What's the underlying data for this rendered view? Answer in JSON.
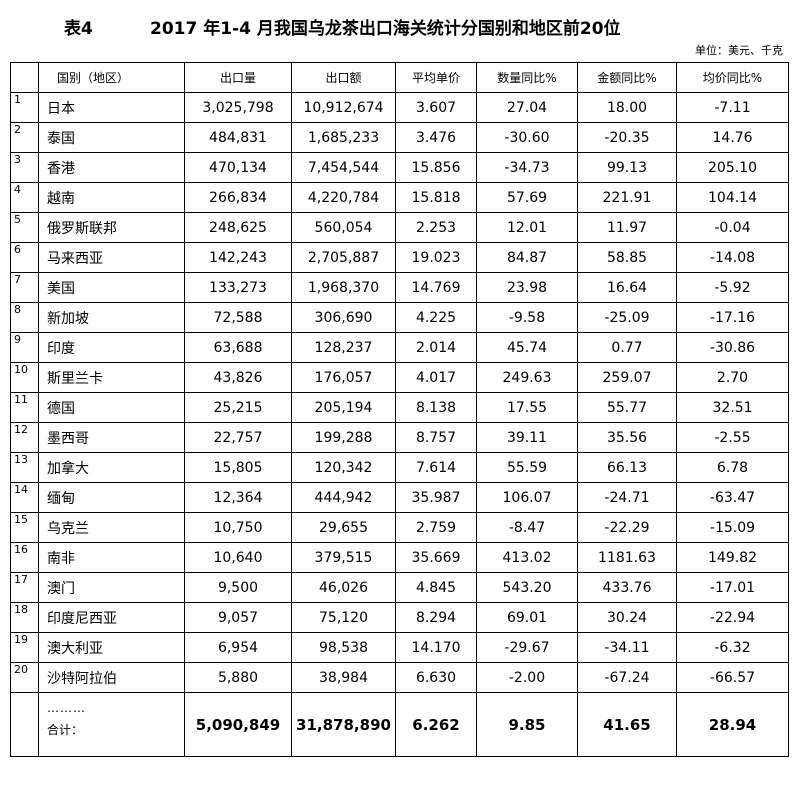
{
  "header": {
    "table_no": "表4",
    "title": "2017 年1-4 月我国乌龙茶出口海关统计分国别和地区前20位",
    "unit": "单位：美元、千克"
  },
  "columns": [
    "国别（地区）",
    "出口量",
    "出口额",
    "平均单价",
    "数量同比%",
    "金额同比%",
    "均价同比%"
  ],
  "rows": [
    {
      "no": "1",
      "name": "日本",
      "qty": "3,025,798",
      "amt": "10,912,674",
      "unit_price": "3.607",
      "qty_pct": "27.04",
      "amt_pct": "18.00",
      "price_pct": "-7.11"
    },
    {
      "no": "2",
      "name": "泰国",
      "qty": "484,831",
      "amt": "1,685,233",
      "unit_price": "3.476",
      "qty_pct": "-30.60",
      "amt_pct": "-20.35",
      "price_pct": "14.76"
    },
    {
      "no": "3",
      "name": "香港",
      "qty": "470,134",
      "amt": "7,454,544",
      "unit_price": "15.856",
      "qty_pct": "-34.73",
      "amt_pct": "99.13",
      "price_pct": "205.10"
    },
    {
      "no": "4",
      "name": "越南",
      "qty": "266,834",
      "amt": "4,220,784",
      "unit_price": "15.818",
      "qty_pct": "57.69",
      "amt_pct": "221.91",
      "price_pct": "104.14"
    },
    {
      "no": "5",
      "name": "俄罗斯联邦",
      "qty": "248,625",
      "amt": "560,054",
      "unit_price": "2.253",
      "qty_pct": "12.01",
      "amt_pct": "11.97",
      "price_pct": "-0.04"
    },
    {
      "no": "6",
      "name": "马来西亚",
      "qty": "142,243",
      "amt": "2,705,887",
      "unit_price": "19.023",
      "qty_pct": "84.87",
      "amt_pct": "58.85",
      "price_pct": "-14.08"
    },
    {
      "no": "7",
      "name": "美国",
      "qty": "133,273",
      "amt": "1,968,370",
      "unit_price": "14.769",
      "qty_pct": "23.98",
      "amt_pct": "16.64",
      "price_pct": "-5.92"
    },
    {
      "no": "8",
      "name": "新加坡",
      "qty": "72,588",
      "amt": "306,690",
      "unit_price": "4.225",
      "qty_pct": "-9.58",
      "amt_pct": "-25.09",
      "price_pct": "-17.16"
    },
    {
      "no": "9",
      "name": "印度",
      "qty": "63,688",
      "amt": "128,237",
      "unit_price": "2.014",
      "qty_pct": "45.74",
      "amt_pct": "0.77",
      "price_pct": "-30.86"
    },
    {
      "no": "10",
      "name": "斯里兰卡",
      "qty": "43,826",
      "amt": "176,057",
      "unit_price": "4.017",
      "qty_pct": "249.63",
      "amt_pct": "259.07",
      "price_pct": "2.70"
    },
    {
      "no": "11",
      "name": "德国",
      "qty": "25,215",
      "amt": "205,194",
      "unit_price": "8.138",
      "qty_pct": "17.55",
      "amt_pct": "55.77",
      "price_pct": "32.51"
    },
    {
      "no": "12",
      "name": "墨西哥",
      "qty": "22,757",
      "amt": "199,288",
      "unit_price": "8.757",
      "qty_pct": "39.11",
      "amt_pct": "35.56",
      "price_pct": "-2.55"
    },
    {
      "no": "13",
      "name": "加拿大",
      "qty": "15,805",
      "amt": "120,342",
      "unit_price": "7.614",
      "qty_pct": "55.59",
      "amt_pct": "66.13",
      "price_pct": "6.78"
    },
    {
      "no": "14",
      "name": "缅甸",
      "qty": "12,364",
      "amt": "444,942",
      "unit_price": "35.987",
      "qty_pct": "106.07",
      "amt_pct": "-24.71",
      "price_pct": "-63.47"
    },
    {
      "no": "15",
      "name": "乌克兰",
      "qty": "10,750",
      "amt": "29,655",
      "unit_price": "2.759",
      "qty_pct": "-8.47",
      "amt_pct": "-22.29",
      "price_pct": "-15.09"
    },
    {
      "no": "16",
      "name": "南非",
      "qty": "10,640",
      "amt": "379,515",
      "unit_price": "35.669",
      "qty_pct": "413.02",
      "amt_pct": "1181.63",
      "price_pct": "149.82"
    },
    {
      "no": "17",
      "name": "澳门",
      "qty": "9,500",
      "amt": "46,026",
      "unit_price": "4.845",
      "qty_pct": "543.20",
      "amt_pct": "433.76",
      "price_pct": "-17.01"
    },
    {
      "no": "18",
      "name": "印度尼西亚",
      "qty": "9,057",
      "amt": "75,120",
      "unit_price": "8.294",
      "qty_pct": "69.01",
      "amt_pct": "30.24",
      "price_pct": "-22.94"
    },
    {
      "no": "19",
      "name": "澳大利亚",
      "qty": "6,954",
      "amt": "98,538",
      "unit_price": "14.170",
      "qty_pct": "-29.67",
      "amt_pct": "-34.11",
      "price_pct": "-6.32"
    },
    {
      "no": "20",
      "name": "沙特阿拉伯",
      "qty": "5,880",
      "amt": "38,984",
      "unit_price": "6.630",
      "qty_pct": "-2.00",
      "amt_pct": "-67.24",
      "price_pct": "-66.57"
    }
  ],
  "total": {
    "ellipsis": "………",
    "label": "合计：",
    "qty": "5,090,849",
    "amt": "31,878,890",
    "unit_price": "6.262",
    "qty_pct": "9.85",
    "amt_pct": "41.65",
    "price_pct": "28.94"
  }
}
